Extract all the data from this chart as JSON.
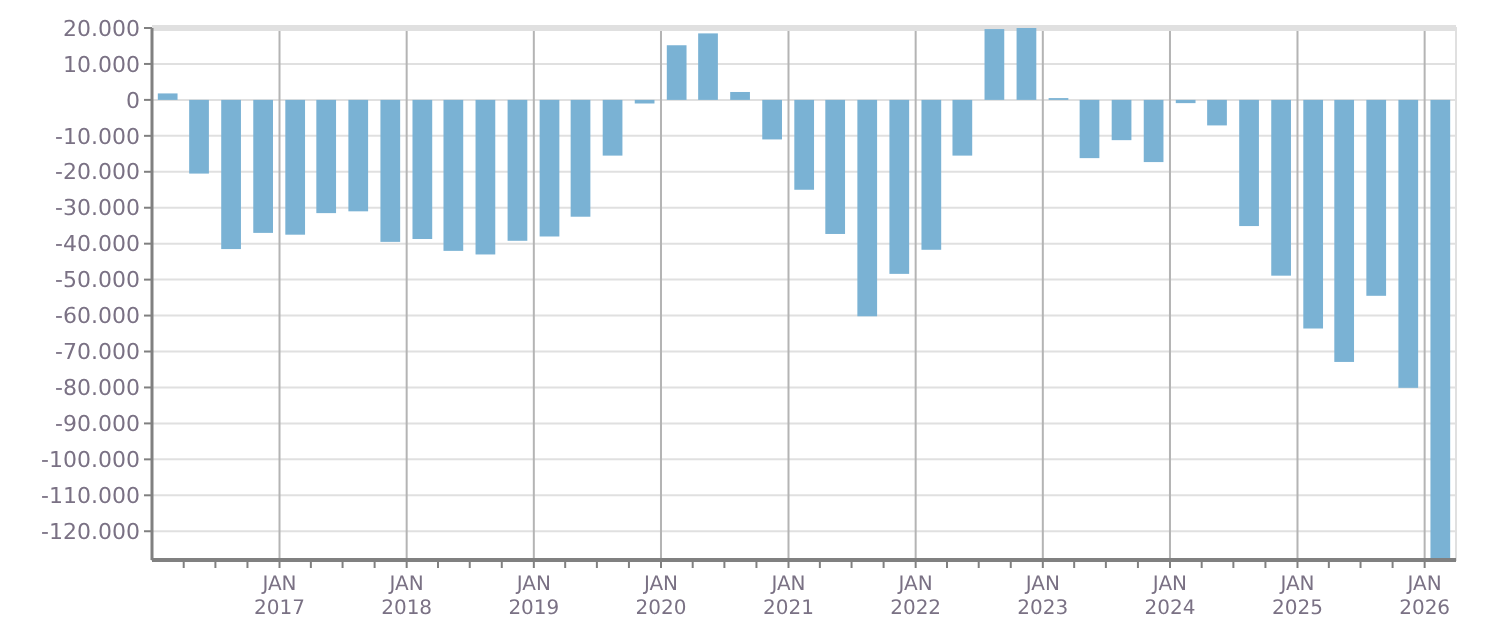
{
  "chart_data": {
    "type": "bar",
    "x": [
      "2016-02-15",
      "2016-05-15",
      "2016-08-15",
      "2016-11-15",
      "2017-02-15",
      "2017-05-15",
      "2017-08-15",
      "2017-11-15",
      "2018-02-15",
      "2018-05-15",
      "2018-08-15",
      "2018-11-15",
      "2019-02-15",
      "2019-05-15",
      "2019-08-15",
      "2019-11-15",
      "2020-02-15",
      "2020-05-15",
      "2020-08-15",
      "2020-11-15",
      "2021-02-15",
      "2021-05-15",
      "2021-08-15",
      "2021-11-15",
      "2022-02-15",
      "2022-05-15",
      "2022-08-15",
      "2022-11-15",
      "2023-02-15",
      "2023-05-15",
      "2023-08-15",
      "2023-11-15",
      "2024-02-15",
      "2024-05-15",
      "2024-08-15",
      "2024-11-15",
      "2025-02-15",
      "2025-05-15",
      "2025-08-15",
      "2025-11-15",
      "2026-02-15"
    ],
    "values": [
      1800,
      -20500,
      -41500,
      -37000,
      -37500,
      -31500,
      -31000,
      -39500,
      -38700,
      -42000,
      -43000,
      -39200,
      -38000,
      -32500,
      -15500,
      -1000,
      15200,
      18500,
      2200,
      -11000,
      -25000,
      -37300,
      -60200,
      -48400,
      -41700,
      -15500,
      19700,
      20000,
      500,
      -16200,
      -11200,
      -17300,
      -900,
      -7100,
      -35100,
      -48900,
      -63600,
      -72900,
      -54500,
      -80100,
      -128000
    ],
    "color": "#7ab2d4",
    "xlim": [
      "2016-01",
      "2026-04"
    ],
    "xticks": [
      {
        "value": "2016-04",
        "label": null
      },
      {
        "value": "2016-07",
        "label": null
      },
      {
        "value": "2016-10",
        "label": null
      },
      {
        "value": "2017-01",
        "label": "JAN\n2017"
      },
      {
        "value": "2017-04",
        "label": null
      },
      {
        "value": "2017-07",
        "label": null
      },
      {
        "value": "2017-10",
        "label": null
      },
      {
        "value": "2018-01",
        "label": "JAN\n2018"
      },
      {
        "value": "2018-04",
        "label": null
      },
      {
        "value": "2018-07",
        "label": null
      },
      {
        "value": "2018-10",
        "label": null
      },
      {
        "value": "2019-01",
        "label": "JAN\n2019"
      },
      {
        "value": "2019-04",
        "label": null
      },
      {
        "value": "2019-07",
        "label": null
      },
      {
        "value": "2019-10",
        "label": null
      },
      {
        "value": "2020-01",
        "label": "JAN\n2020"
      },
      {
        "value": "2020-04",
        "label": null
      },
      {
        "value": "2020-07",
        "label": null
      },
      {
        "value": "2020-10",
        "label": null
      },
      {
        "value": "2021-01",
        "label": "JAN\n2021"
      },
      {
        "value": "2021-04",
        "label": null
      },
      {
        "value": "2021-07",
        "label": null
      },
      {
        "value": "2021-10",
        "label": null
      },
      {
        "value": "2022-01",
        "label": "JAN\n2022"
      },
      {
        "value": "2022-04",
        "label": null
      },
      {
        "value": "2022-07",
        "label": null
      },
      {
        "value": "2022-10",
        "label": null
      },
      {
        "value": "2023-01",
        "label": "JAN\n2023"
      },
      {
        "value": "2023-04",
        "label": null
      },
      {
        "value": "2023-07",
        "label": null
      },
      {
        "value": "2023-10",
        "label": null
      },
      {
        "value": "2024-01",
        "label": "JAN\n2024"
      },
      {
        "value": "2024-04",
        "label": null
      },
      {
        "value": "2024-07",
        "label": null
      },
      {
        "value": "2024-10",
        "label": null
      },
      {
        "value": "2025-01",
        "label": "JAN\n2025"
      },
      {
        "value": "2025-04",
        "label": null
      },
      {
        "value": "2025-07",
        "label": null
      },
      {
        "value": "2025-10",
        "label": null
      },
      {
        "value": "2026-01",
        "label": "JAN\n2026"
      }
    ],
    "ylim": [
      -128000,
      20000
    ],
    "yticks": [
      {
        "value": 20000,
        "label": "20.000"
      },
      {
        "value": 10000,
        "label": "10.000"
      },
      0,
      {
        "value": -10000,
        "label": "-10.000"
      },
      {
        "value": -20000,
        "label": "-20.000"
      },
      {
        "value": -30000,
        "label": "-30.000"
      },
      {
        "value": -40000,
        "label": "-40.000"
      },
      {
        "value": -50000,
        "label": "-50.000"
      },
      {
        "value": -60000,
        "label": "-60.000"
      },
      {
        "value": -70000,
        "label": "-70.000"
      },
      {
        "value": -80000,
        "label": "-80.000"
      },
      {
        "value": -90000,
        "label": "-90.000"
      },
      {
        "value": -100000,
        "label": "-100.000"
      },
      {
        "value": -110000,
        "label": "-110.000"
      },
      {
        "value": -120000,
        "label": "-120.000"
      }
    ],
    "grid": true
  }
}
